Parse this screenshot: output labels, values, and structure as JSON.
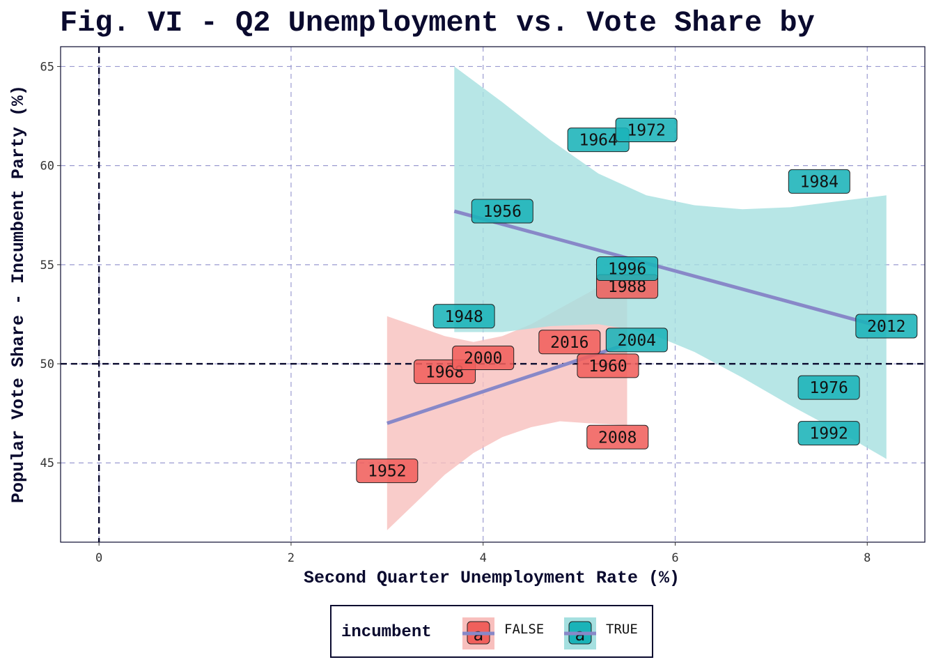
{
  "chart_data": {
    "type": "scatter",
    "title": "Fig. VI - Q2 Unemployment vs. Vote Share by",
    "xlabel": "Second Quarter Unemployment Rate (%)",
    "ylabel": "Popular Vote Share - Incumbent Party (%)",
    "xlim": [
      -0.4,
      8.6
    ],
    "ylim": [
      41,
      66
    ],
    "xticks": [
      0,
      2,
      4,
      6,
      8
    ],
    "yticks": [
      45,
      50,
      55,
      60,
      65
    ],
    "grid": true,
    "reference_lines": {
      "x": 0,
      "y": 50
    },
    "legend": {
      "title": "incumbent",
      "position": "bottom",
      "entries": [
        {
          "label": "FALSE",
          "color": "#f0605c",
          "band_color": "#f8bfbd",
          "key_glyph": "a"
        },
        {
          "label": "TRUE",
          "color": "#1ab3b8",
          "band_color": "#a5e0e0",
          "key_glyph": "a"
        }
      ]
    },
    "fit_line_color": "#8888c8",
    "series": [
      {
        "name": "FALSE",
        "color": "#f0605c",
        "band_color": "#f8bfbd",
        "points": [
          {
            "label": "1952",
            "x": 3.0,
            "y": 44.6
          },
          {
            "label": "1968",
            "x": 3.6,
            "y": 49.6
          },
          {
            "label": "2000",
            "x": 4.0,
            "y": 50.3
          },
          {
            "label": "2016",
            "x": 4.9,
            "y": 51.1
          },
          {
            "label": "1960",
            "x": 5.3,
            "y": 49.9
          },
          {
            "label": "1988",
            "x": 5.5,
            "y": 53.9
          },
          {
            "label": "2008",
            "x": 5.4,
            "y": 46.3
          }
        ],
        "fit": {
          "x": [
            3.0,
            5.5
          ],
          "y": [
            47.0,
            51.0
          ]
        },
        "band": {
          "x": [
            3.0,
            3.3,
            3.6,
            3.9,
            4.2,
            4.5,
            4.8,
            5.1,
            5.5
          ],
          "lower": [
            41.6,
            43.0,
            44.4,
            45.5,
            46.3,
            46.8,
            47.1,
            47.0,
            46.9
          ],
          "upper": [
            52.4,
            51.9,
            51.4,
            51.1,
            51.4,
            52.0,
            52.8,
            53.6,
            54.8
          ]
        }
      },
      {
        "name": "TRUE",
        "color": "#1ab3b8",
        "band_color": "#a5e0e0",
        "points": [
          {
            "label": "1948",
            "x": 3.8,
            "y": 52.4
          },
          {
            "label": "1956",
            "x": 4.2,
            "y": 57.7
          },
          {
            "label": "1964",
            "x": 5.2,
            "y": 61.3
          },
          {
            "label": "1972",
            "x": 5.7,
            "y": 61.8
          },
          {
            "label": "1996",
            "x": 5.5,
            "y": 54.8
          },
          {
            "label": "2004",
            "x": 5.6,
            "y": 51.2
          },
          {
            "label": "1984",
            "x": 7.5,
            "y": 59.2
          },
          {
            "label": "2012",
            "x": 8.2,
            "y": 51.9
          },
          {
            "label": "1976",
            "x": 7.6,
            "y": 48.8
          },
          {
            "label": "1992",
            "x": 7.6,
            "y": 46.5
          }
        ],
        "fit": {
          "x": [
            3.7,
            8.2
          ],
          "y": [
            57.7,
            51.8
          ]
        },
        "band": {
          "x": [
            3.7,
            4.2,
            4.7,
            5.2,
            5.7,
            6.2,
            6.7,
            7.2,
            7.7,
            8.2
          ],
          "lower": [
            51.6,
            51.6,
            51.9,
            52.0,
            51.6,
            50.6,
            49.3,
            47.9,
            46.6,
            45.2
          ],
          "upper": [
            65.0,
            63.2,
            61.3,
            59.6,
            58.5,
            58.0,
            57.8,
            57.9,
            58.2,
            58.5
          ]
        }
      }
    ]
  }
}
